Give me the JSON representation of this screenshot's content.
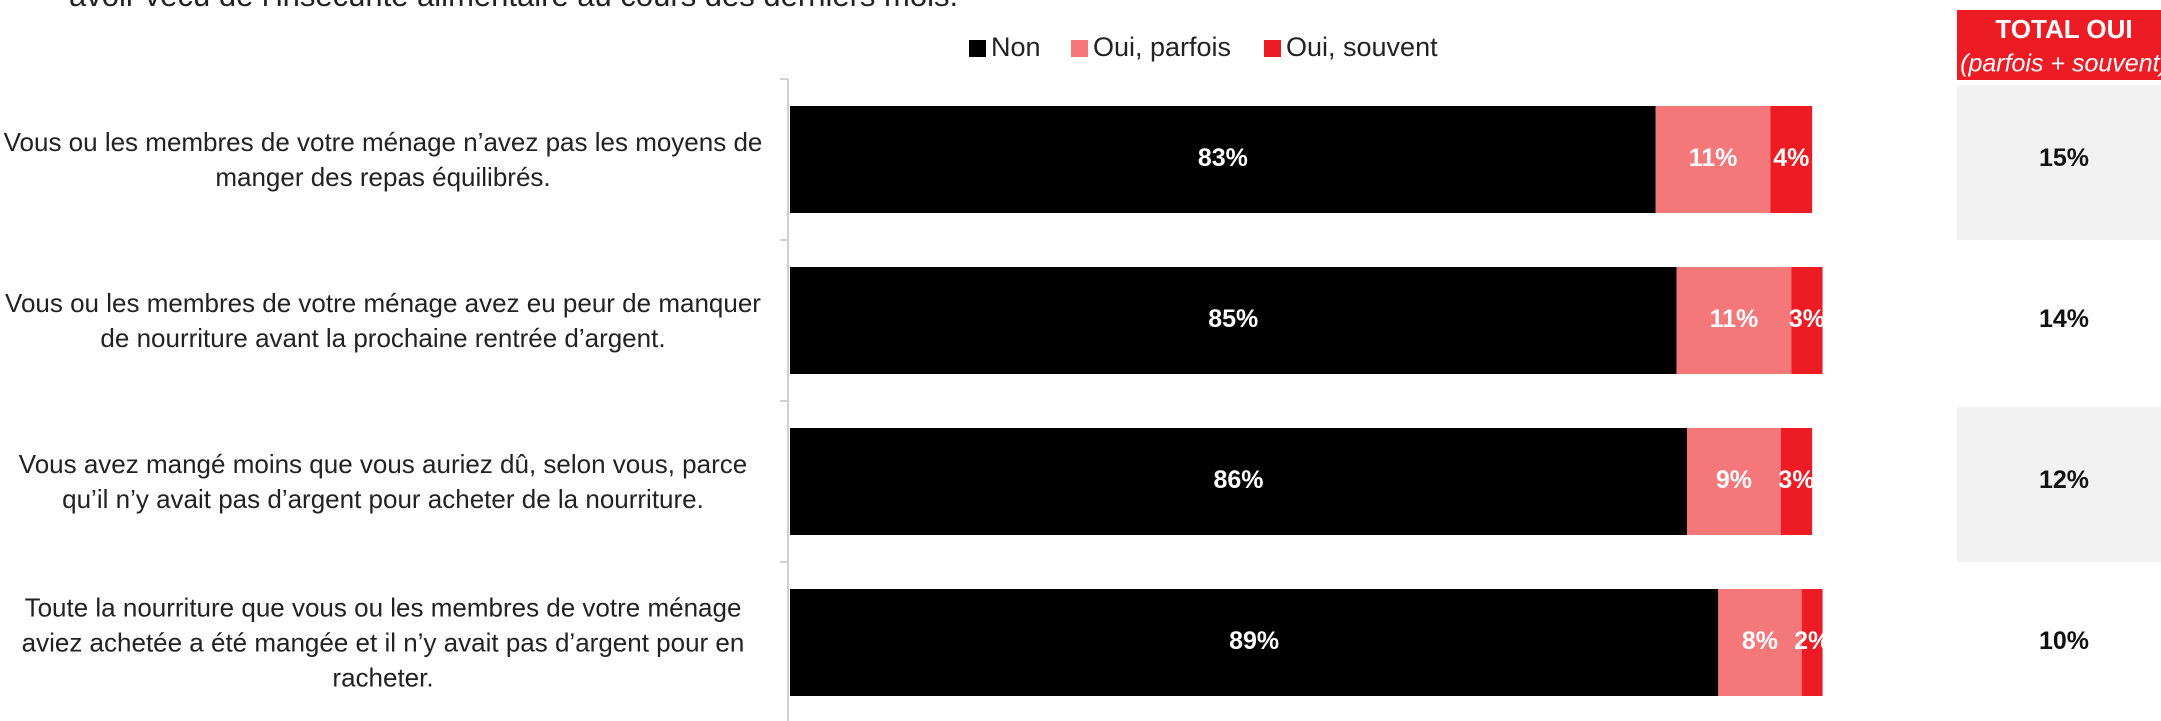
{
  "chart_data": {
    "type": "bar",
    "orientation": "horizontal",
    "stacked": true,
    "title": "avoir vécu de l’insécurité alimentaire au cours des derniers mois.",
    "categories": [
      "Vous ou les membres de votre ménage n’avez pas les moyens de manger des repas équilibrés.",
      "Vous ou les membres de votre ménage avez eu peur de manquer de nourriture avant la prochaine rentrée d’argent.",
      "Vous avez mangé moins que vous auriez dû, selon vous, parce qu’il n’y avait pas d’argent pour acheter de la nourriture.",
      "Toute la nourriture que vous ou les membres de votre ménage aviez achetée a été mangée et il n’y avait pas d’argent pour en racheter."
    ],
    "series": [
      {
        "name": "Non",
        "color": "#000000",
        "values": [
          83,
          85,
          86,
          89
        ],
        "value_labels": [
          "83%",
          "85%",
          "86%",
          "89%"
        ]
      },
      {
        "name": "Oui, parfois",
        "color": "#f4777a",
        "values": [
          11,
          11,
          9,
          8
        ],
        "value_labels": [
          "11%",
          "11%",
          "9%",
          "8%"
        ]
      },
      {
        "name": "Oui, souvent",
        "color": "#ed1c24",
        "values": [
          4,
          3,
          3,
          2
        ],
        "value_labels": [
          "4%",
          "3%",
          "3%",
          "2%"
        ]
      }
    ],
    "xlim": [
      0,
      100
    ],
    "legend": "top"
  },
  "total_table": {
    "title": "TOTAL OUI",
    "subtitle": "(parfois + souvent)",
    "values": [
      "15%",
      "14%",
      "12%",
      "10%"
    ]
  }
}
